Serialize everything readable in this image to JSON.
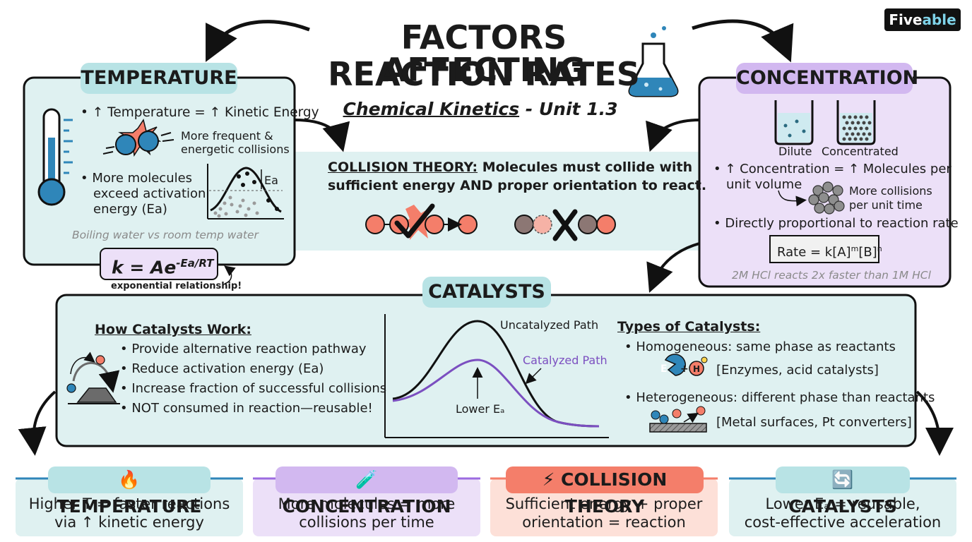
{
  "header": {
    "title_line1": "FACTORS AFFECTING",
    "title_line2": "REACTION RATES",
    "subtitle_main": "Chemical Kinetics",
    "subtitle_unit": " - Unit 1.3",
    "brand_a": "Five",
    "brand_b": "able"
  },
  "temperature": {
    "title": "TEMPERATURE",
    "bullet1": "• ↑ Temperature = ↑ Kinetic Energy",
    "collision_note_1": "More frequent &",
    "collision_note_2": "energetic collisions",
    "bullet2_1": "• More molecules",
    "bullet2_2": "exceed activation",
    "bullet2_3": "energy (Ea)",
    "curve_label": "Ea",
    "example": "Boiling water vs room temp water",
    "formula_k": "k = Ae",
    "formula_exp": "-Ea/RT",
    "formula_note": "exponential relationship!"
  },
  "collision_theory": {
    "heading": "COLLISION THEORY:",
    "text1": " Molecules must collide with",
    "text2": "sufficient energy AND proper orientation to react."
  },
  "concentration": {
    "title": "CONCENTRATION",
    "dilute_label": "Dilute",
    "concentrated_label": "Concentrated",
    "bullet1_1": "• ↑ Concentration = ↑ Molecules per",
    "bullet1_2": "unit volume",
    "note_1": "More collisions",
    "note_2": "per unit time",
    "bullet2": "• Directly proportional to reaction rate",
    "rate_law": "Rate = k[A]",
    "rate_m": "m",
    "rate_b": "[B]",
    "rate_n": "n",
    "example": "2M HCl reacts 2x faster than 1M HCl"
  },
  "catalysts": {
    "title": "CATALYSTS",
    "how_heading": "How Catalysts Work:",
    "how_items": [
      "• Provide alternative reaction pathway",
      "• Reduce activation energy (Ea)",
      "• Increase fraction of successful collisions",
      "• NOT consumed in reaction—reusable!"
    ],
    "uncatalyzed_label": "Uncatalyzed Path",
    "catalyzed_label": "Catalyzed Path",
    "lower_label": "Lower Eₐ",
    "types_heading": "Types of Catalysts:",
    "homogeneous": "• Homogeneous: same phase as reactants",
    "homogeneous_example": "[Enzymes, acid catalysts]",
    "heterogeneous": "• Heterogeneous: different phase than reactants",
    "heterogeneous_example": "[Metal surfaces, Pt converters]",
    "enzyme_e": "E",
    "enzyme_plus": "+",
    "enzyme_h": "H"
  },
  "summary_cards": [
    {
      "icon": "🔥",
      "title": "TEMPERATURE",
      "line1": "Higher T = faster reactions",
      "line2": "via ↑ kinetic energy"
    },
    {
      "icon": "🧪",
      "title": "CONCENTRATION",
      "line1": "More molecules = more",
      "line2": "collisions per time"
    },
    {
      "icon": "⚡",
      "title": "COLLISION THEORY",
      "line1": "Sufficient energy + proper",
      "line2": "orientation = reaction"
    },
    {
      "icon": "🔄",
      "title": "CATALYSTS",
      "line1": "Lower Eₐ = reusable,",
      "line2": "cost-effective acceleration"
    }
  ],
  "colors": {
    "teal_bg": "#dff1f1",
    "teal_pill": "#b8e3e5",
    "purple_bg": "#ece0f8",
    "purple_pill": "#d2b8f0",
    "salmon": "#f47e6a",
    "catalyzed_curve": "#7b4fc0"
  }
}
